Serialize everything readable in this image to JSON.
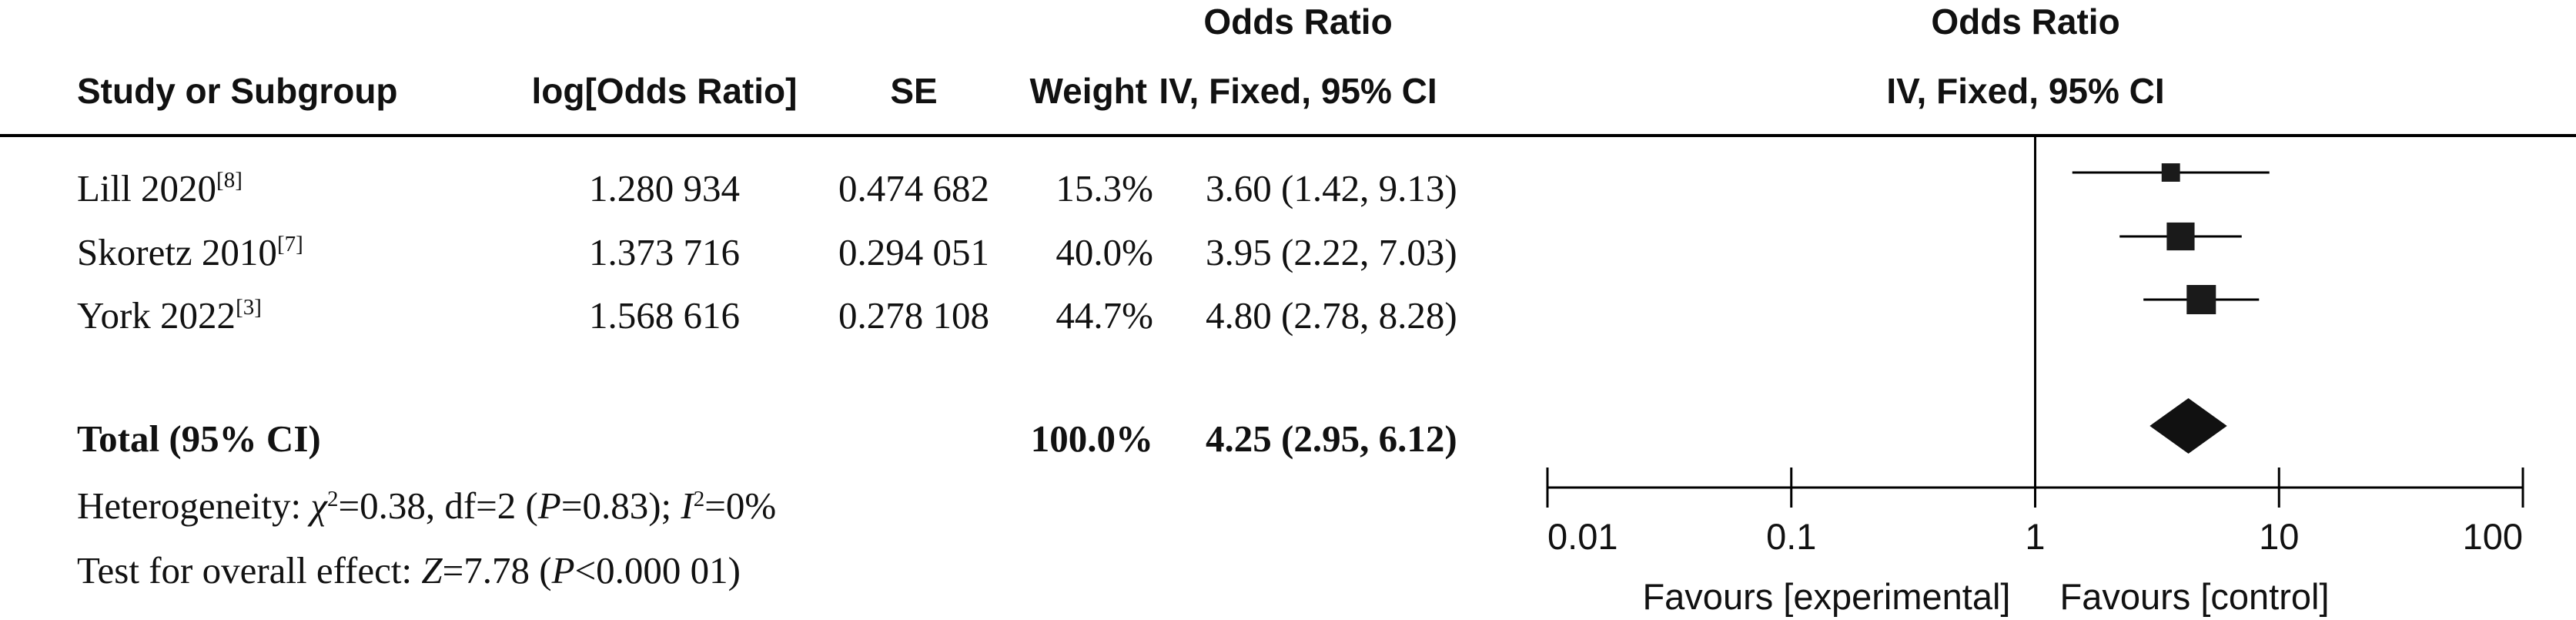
{
  "headers": {
    "study": "Study or Subgroup",
    "log_or": "log[Odds Ratio]",
    "se": "SE",
    "weight": "Weight",
    "or_col_top": "Odds Ratio",
    "or_col_bottom": "IV, Fixed, 95% CI",
    "plot_top": "Odds Ratio",
    "plot_bottom": "IV, Fixed, 95% CI"
  },
  "rows": [
    {
      "study": "Lill 2020",
      "ref": "[8]",
      "log_or": "1.280 934",
      "se": "0.474 682",
      "weight": "15.3%",
      "ci_text": "3.60 (1.42, 9.13)"
    },
    {
      "study": "Skoretz 2010",
      "ref": "[7]",
      "log_or": "1.373 716",
      "se": "0.294 051",
      "weight": "40.0%",
      "ci_text": "3.95 (2.22, 7.03)"
    },
    {
      "study": "York 2022",
      "ref": "[3]",
      "log_or": "1.568 616",
      "se": "0.278 108",
      "weight": "44.7%",
      "ci_text": "4.80 (2.78, 8.28)"
    }
  ],
  "total": {
    "label": "Total (95% CI)",
    "weight": "100.0%",
    "ci_text": "4.25 (2.95, 6.12)"
  },
  "heterogeneity": {
    "prefix": "Heterogeneity: ",
    "chi_symbol": "χ",
    "chi_exp": "2",
    "chi_value": "=0.38, df=2 (",
    "p_symbol": "P",
    "p_value": "=0.83); ",
    "i_symbol": "I",
    "i_exp": "2",
    "i_value": "=0%"
  },
  "overall": {
    "prefix": "Test for overall effect: ",
    "z_symbol": "Z",
    "z_value": "=7.78 (",
    "p_symbol": "P",
    "p_value": "<0.000 01)"
  },
  "chart_data": {
    "type": "forest",
    "scale": "log",
    "xlim": [
      0.01,
      100
    ],
    "ticks": [
      0.01,
      0.1,
      1,
      10,
      100
    ],
    "tick_labels": [
      "0.01",
      "0.1",
      "1",
      "10",
      "100"
    ],
    "null_line": 1,
    "favours_left": "Favours [experimental]",
    "favours_right": "Favours [control]",
    "studies": [
      {
        "name": "Lill 2020",
        "or": 3.6,
        "lower": 1.42,
        "upper": 9.13,
        "weight": 15.3
      },
      {
        "name": "Skoretz 2010",
        "or": 3.95,
        "lower": 2.22,
        "upper": 7.03,
        "weight": 40.0
      },
      {
        "name": "York 2022",
        "or": 4.8,
        "lower": 2.78,
        "upper": 8.28,
        "weight": 44.7
      }
    ],
    "pooled": {
      "or": 4.25,
      "lower": 2.95,
      "upper": 6.12
    }
  }
}
